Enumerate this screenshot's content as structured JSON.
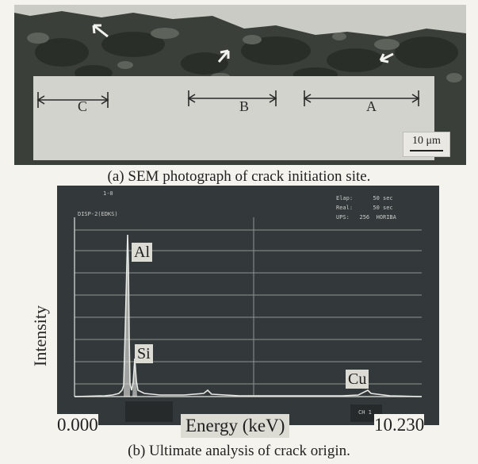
{
  "panel_a": {
    "span_labels": [
      "C",
      "B",
      "A"
    ],
    "scale_bar": "10 μm",
    "caption": "(a) SEM photograph of crack initiation site."
  },
  "panel_b": {
    "screen_text": {
      "top_left_1": "1-0",
      "top_left_2": "DISP-2(EDKS)",
      "top_right_1": "Elap:      50 sec",
      "top_right_2": "Real:      50 sec",
      "top_right_3": "UPS:   256  HORIBA",
      "bottom_right": "CH 1"
    },
    "peak_labels": [
      "Al",
      "Si",
      "Cu"
    ],
    "y_axis_label": "Intensity",
    "x_axis_label": "Energy (keV)",
    "x_min_label": "0.000",
    "x_max_label": "10.230",
    "caption": "(b) Ultimate analysis of crack origin."
  }
}
